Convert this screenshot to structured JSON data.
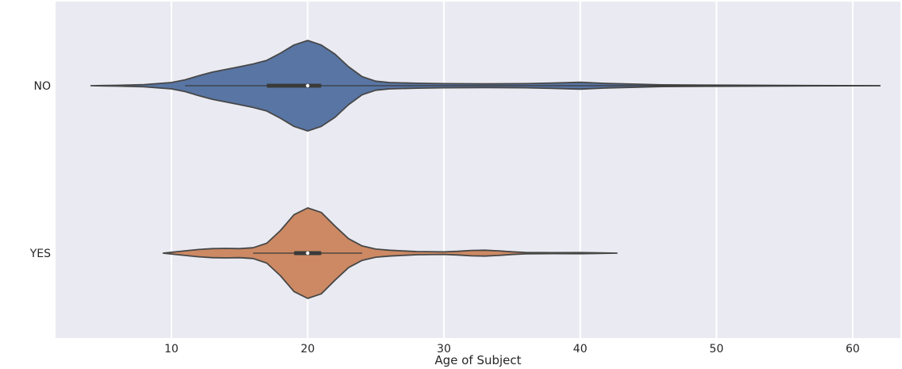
{
  "chart_data": {
    "type": "violin",
    "orientation": "horizontal",
    "xlabel": "Age of Subject",
    "ylabel": "",
    "xlim": [
      1.5,
      63.5
    ],
    "xticks": [
      10,
      20,
      30,
      40,
      50,
      60
    ],
    "grid": true,
    "background": "#eaeaf2",
    "categories": [
      "NO",
      "YES"
    ],
    "series": [
      {
        "category": "NO",
        "color": "#5875a4",
        "range": [
          4.1,
          62
        ],
        "box": {
          "q1": 17,
          "median": 20,
          "q3": 21,
          "whisker_low": 11,
          "whisker_high": 62
        },
        "density_profile": [
          [
            4.1,
            0.0
          ],
          [
            6,
            0.008
          ],
          [
            8,
            0.025
          ],
          [
            10,
            0.07
          ],
          [
            11,
            0.13
          ],
          [
            12,
            0.22
          ],
          [
            13,
            0.3
          ],
          [
            14,
            0.36
          ],
          [
            15,
            0.42
          ],
          [
            16,
            0.48
          ],
          [
            17,
            0.56
          ],
          [
            18,
            0.72
          ],
          [
            19,
            0.9
          ],
          [
            20,
            1.0
          ],
          [
            21,
            0.9
          ],
          [
            22,
            0.7
          ],
          [
            23,
            0.42
          ],
          [
            24,
            0.2
          ],
          [
            25,
            0.1
          ],
          [
            26,
            0.07
          ],
          [
            28,
            0.055
          ],
          [
            30,
            0.045
          ],
          [
            33,
            0.04
          ],
          [
            36,
            0.045
          ],
          [
            38,
            0.06
          ],
          [
            40,
            0.075
          ],
          [
            42,
            0.05
          ],
          [
            44,
            0.035
          ],
          [
            46,
            0.02
          ],
          [
            50,
            0.012
          ],
          [
            55,
            0.006
          ],
          [
            62,
            0.0
          ]
        ]
      },
      {
        "category": "YES",
        "color": "#cc8963",
        "range": [
          9.4,
          42.7
        ],
        "box": {
          "q1": 19,
          "median": 20,
          "q3": 21,
          "whisker_low": 16,
          "whisker_high": 24
        },
        "density_profile": [
          [
            9.4,
            0.0
          ],
          [
            10,
            0.02
          ],
          [
            11,
            0.05
          ],
          [
            12,
            0.08
          ],
          [
            13,
            0.1
          ],
          [
            14,
            0.105
          ],
          [
            15,
            0.1
          ],
          [
            16,
            0.12
          ],
          [
            17,
            0.22
          ],
          [
            18,
            0.5
          ],
          [
            19,
            0.85
          ],
          [
            20,
            1.0
          ],
          [
            21,
            0.9
          ],
          [
            22,
            0.6
          ],
          [
            23,
            0.32
          ],
          [
            24,
            0.16
          ],
          [
            25,
            0.09
          ],
          [
            26,
            0.065
          ],
          [
            28,
            0.035
          ],
          [
            30,
            0.028
          ],
          [
            31,
            0.04
          ],
          [
            32,
            0.06
          ],
          [
            33,
            0.065
          ],
          [
            34,
            0.05
          ],
          [
            35,
            0.03
          ],
          [
            36,
            0.015
          ],
          [
            38,
            0.01
          ],
          [
            40,
            0.012
          ],
          [
            41,
            0.008
          ],
          [
            42.7,
            0.0
          ]
        ]
      }
    ]
  }
}
